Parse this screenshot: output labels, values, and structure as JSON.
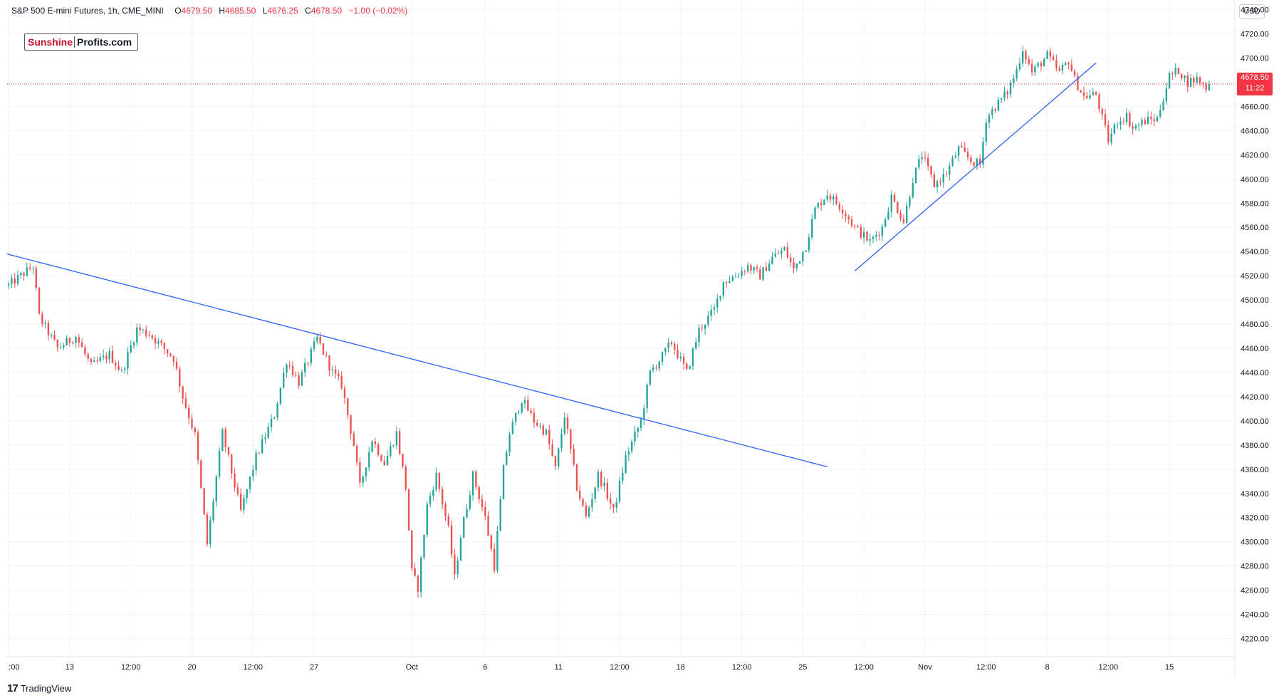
{
  "header": {
    "symbol": "S&P 500 E-mini Futures, 1h, CME_MINI",
    "o_label": "O",
    "o": "4679.50",
    "h_label": "H",
    "h": "4685.50",
    "l_label": "L",
    "l": "4676.25",
    "c_label": "C",
    "c": "4678.50",
    "change": "−1.00 (−0.02%)"
  },
  "logo": {
    "part1": "Sunshine",
    "part2": "Profits.com"
  },
  "currency": "USD",
  "current_price": {
    "price": "4678.50",
    "countdown": "11:22"
  },
  "brand": {
    "icon": "17",
    "name": "TradingView"
  },
  "colors": {
    "up": "#26a69a",
    "down": "#ef5350",
    "trendline": "#2962ff",
    "last_price_line": "#f23645"
  },
  "chart_data": {
    "type": "candlestick",
    "interval": "1h",
    "ylim": [
      4205,
      4748
    ],
    "yticks": [
      4220,
      4240,
      4260,
      4280,
      4300,
      4320,
      4340,
      4360,
      4380,
      4400,
      4420,
      4440,
      4460,
      4480,
      4500,
      4520,
      4540,
      4560,
      4580,
      4600,
      4620,
      4640,
      4660,
      4680,
      4700,
      4720,
      4740
    ],
    "ytick_labels": [
      "4220.00",
      "4240.00",
      "4260.00",
      "4280.00",
      "4300.00",
      "4320.00",
      "4340.00",
      "4360.00",
      "4380.00",
      "4400.00",
      "4420.00",
      "4440.00",
      "4460.00",
      "4480.00",
      "4500.00",
      "4520.00",
      "4540.00",
      "4560.00",
      "4580.00",
      "4600.00",
      "4620.00",
      "4640.00",
      "4660.00",
      "4680.00",
      "4700.00",
      "4720.00",
      "4740.00"
    ],
    "xticks": [
      {
        "label": ":00",
        "idx": 0
      },
      {
        "label": "13",
        "idx": 20
      },
      {
        "label": "12:00",
        "idx": 40
      },
      {
        "label": "20",
        "idx": 60
      },
      {
        "label": "12:00",
        "idx": 80
      },
      {
        "label": "27",
        "idx": 100
      },
      {
        "label": "Oct",
        "idx": 132
      },
      {
        "label": "6",
        "idx": 156
      },
      {
        "label": "11",
        "idx": 180
      },
      {
        "label": "12:00",
        "idx": 200
      },
      {
        "label": "18",
        "idx": 220
      },
      {
        "label": "12:00",
        "idx": 240
      },
      {
        "label": "25",
        "idx": 260
      },
      {
        "label": "12:00",
        "idx": 280
      },
      {
        "label": "Nov",
        "idx": 300
      },
      {
        "label": "12:00",
        "idx": 320
      },
      {
        "label": "8",
        "idx": 340
      },
      {
        "label": "12:00",
        "idx": 360
      },
      {
        "label": "15",
        "idx": 380
      }
    ],
    "waypoints": [
      [
        0,
        4512
      ],
      [
        5,
        4522
      ],
      [
        8,
        4528
      ],
      [
        10,
        4486
      ],
      [
        16,
        4460
      ],
      [
        22,
        4470
      ],
      [
        27,
        4445
      ],
      [
        33,
        4455
      ],
      [
        37,
        4440
      ],
      [
        42,
        4476
      ],
      [
        46,
        4472
      ],
      [
        54,
        4452
      ],
      [
        57,
        4420
      ],
      [
        61,
        4388
      ],
      [
        65,
        4298
      ],
      [
        70,
        4390
      ],
      [
        76,
        4325
      ],
      [
        81,
        4370
      ],
      [
        87,
        4405
      ],
      [
        91,
        4450
      ],
      [
        95,
        4432
      ],
      [
        101,
        4468
      ],
      [
        106,
        4440
      ],
      [
        109,
        4430
      ],
      [
        113,
        4380
      ],
      [
        115,
        4345
      ],
      [
        119,
        4385
      ],
      [
        123,
        4365
      ],
      [
        127,
        4390
      ],
      [
        130,
        4345
      ],
      [
        132,
        4275
      ],
      [
        134,
        4262
      ],
      [
        137,
        4330
      ],
      [
        140,
        4355
      ],
      [
        144,
        4310
      ],
      [
        146,
        4270
      ],
      [
        148,
        4305
      ],
      [
        152,
        4355
      ],
      [
        156,
        4320
      ],
      [
        159,
        4280
      ],
      [
        162,
        4360
      ],
      [
        164,
        4390
      ],
      [
        168,
        4418
      ],
      [
        172,
        4400
      ],
      [
        176,
        4390
      ],
      [
        179,
        4360
      ],
      [
        182,
        4405
      ],
      [
        186,
        4345
      ],
      [
        189,
        4320
      ],
      [
        193,
        4355
      ],
      [
        195,
        4345
      ],
      [
        198,
        4325
      ],
      [
        202,
        4370
      ],
      [
        207,
        4400
      ],
      [
        210,
        4440
      ],
      [
        213,
        4450
      ],
      [
        217,
        4465
      ],
      [
        222,
        4440
      ],
      [
        226,
        4475
      ],
      [
        231,
        4492
      ],
      [
        234,
        4515
      ],
      [
        238,
        4520
      ],
      [
        242,
        4528
      ],
      [
        246,
        4520
      ],
      [
        250,
        4535
      ],
      [
        254,
        4542
      ],
      [
        257,
        4525
      ],
      [
        261,
        4545
      ],
      [
        264,
        4575
      ],
      [
        268,
        4588
      ],
      [
        273,
        4575
      ],
      [
        277,
        4560
      ],
      [
        282,
        4548
      ],
      [
        286,
        4560
      ],
      [
        289,
        4585
      ],
      [
        293,
        4565
      ],
      [
        296,
        4600
      ],
      [
        299,
        4620
      ],
      [
        303,
        4595
      ],
      [
        307,
        4605
      ],
      [
        311,
        4625
      ],
      [
        315,
        4615
      ],
      [
        318,
        4612
      ],
      [
        320,
        4650
      ],
      [
        323,
        4660
      ],
      [
        327,
        4672
      ],
      [
        330,
        4690
      ],
      [
        332,
        4708
      ],
      [
        335,
        4688
      ],
      [
        340,
        4702
      ],
      [
        344,
        4688
      ],
      [
        347,
        4698
      ],
      [
        349,
        4682
      ],
      [
        352,
        4668
      ],
      [
        356,
        4670
      ],
      [
        358,
        4650
      ],
      [
        360,
        4632
      ],
      [
        363,
        4648
      ],
      [
        366,
        4652
      ],
      [
        368,
        4642
      ],
      [
        372,
        4648
      ],
      [
        376,
        4650
      ],
      [
        380,
        4685
      ],
      [
        383,
        4690
      ],
      [
        386,
        4680
      ],
      [
        389,
        4683
      ],
      [
        392,
        4676
      ],
      [
        393,
        4678.5
      ]
    ],
    "trendlines": [
      {
        "from": [
          -0.5,
          4538
        ],
        "to": [
          268,
          4362
        ]
      },
      {
        "from": [
          277,
          4524
        ],
        "to": [
          356,
          4696
        ]
      }
    ],
    "last_price": 4678.5
  }
}
